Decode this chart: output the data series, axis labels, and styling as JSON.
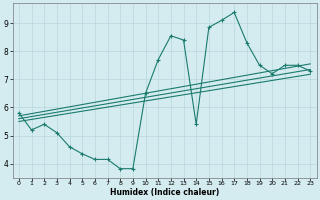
{
  "xlabel": "Humidex (Indice chaleur)",
  "bg_color": "#d4ecef",
  "line_color": "#1a7a6e",
  "grid_color": "#b8d8db",
  "xlim": [
    -0.5,
    23.5
  ],
  "ylim": [
    3.5,
    9.7
  ],
  "xticks": [
    0,
    1,
    2,
    3,
    4,
    5,
    6,
    7,
    8,
    9,
    10,
    11,
    12,
    13,
    14,
    15,
    16,
    17,
    18,
    19,
    20,
    21,
    22,
    23
  ],
  "yticks": [
    4,
    5,
    6,
    7,
    8,
    9
  ],
  "series1_x": [
    0,
    1,
    2,
    3,
    4,
    5,
    6,
    7,
    8,
    9,
    10,
    11,
    12,
    13,
    14,
    15,
    16,
    17,
    18,
    19,
    20,
    21,
    22,
    23
  ],
  "series1_y": [
    5.8,
    5.2,
    5.4,
    5.1,
    4.6,
    4.35,
    4.15,
    4.15,
    3.82,
    3.82,
    6.5,
    7.7,
    8.55,
    8.4,
    5.4,
    8.85,
    9.1,
    9.38,
    8.3,
    7.5,
    7.2,
    7.5,
    7.5,
    7.3
  ],
  "series2_x": [
    0,
    23
  ],
  "series2_y": [
    5.7,
    7.55
  ],
  "series3_x": [
    0,
    23
  ],
  "series3_y": [
    5.6,
    7.35
  ],
  "series4_x": [
    0,
    23
  ],
  "series4_y": [
    5.5,
    7.18
  ],
  "marker": "+"
}
